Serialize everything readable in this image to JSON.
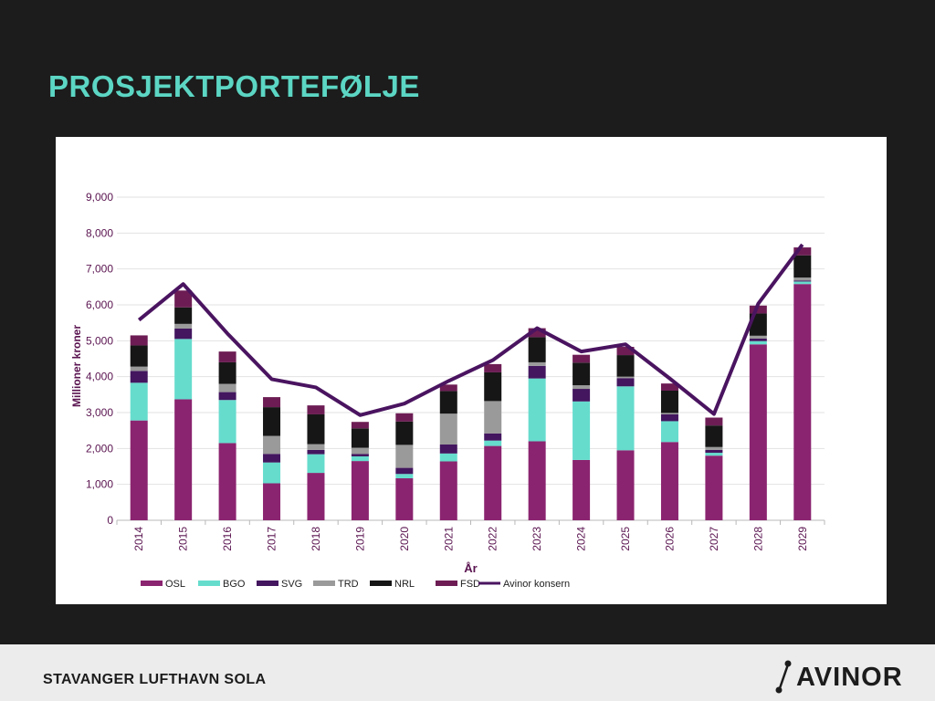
{
  "slide": {
    "title": "PROSJEKTPORTEFØLJE",
    "footer": "STAVANGER LUFTHAVN SOLA",
    "logo_text": "AVINOR"
  },
  "chart_data": {
    "type": "bar",
    "stacked": true,
    "title": "",
    "xlabel": "År",
    "ylabel": "Millioner kroner",
    "ylim": [
      0,
      9000
    ],
    "yticks": [
      0,
      1000,
      2000,
      3000,
      4000,
      5000,
      6000,
      7000,
      8000,
      9000
    ],
    "ytick_labels": [
      "0",
      "1,000",
      "2,000",
      "3,000",
      "4,000",
      "5,000",
      "6,000",
      "7,000",
      "8,000",
      "9,000"
    ],
    "grid": true,
    "legend_position": "bottom",
    "categories": [
      "2014",
      "2015",
      "2016",
      "2017",
      "2018",
      "2019",
      "2020",
      "2021",
      "2022",
      "2023",
      "2024",
      "2025",
      "2026",
      "2027",
      "2028",
      "2029"
    ],
    "series": [
      {
        "name": "OSL",
        "color": "#8b2470",
        "values": [
          2780,
          3370,
          2150,
          1030,
          1320,
          1650,
          1170,
          1640,
          2070,
          2200,
          1680,
          1950,
          2180,
          1800,
          4900,
          6580
        ]
      },
      {
        "name": "BGO",
        "color": "#66dccd",
        "values": [
          1050,
          1680,
          1200,
          580,
          520,
          130,
          120,
          220,
          150,
          1750,
          1630,
          1780,
          580,
          80,
          90,
          70
        ]
      },
      {
        "name": "SVG",
        "color": "#43165f",
        "values": [
          330,
          290,
          220,
          240,
          120,
          70,
          170,
          250,
          200,
          350,
          350,
          230,
          190,
          80,
          70,
          30
        ]
      },
      {
        "name": "TRD",
        "color": "#9a9a9a",
        "values": [
          120,
          130,
          230,
          500,
          160,
          170,
          640,
          860,
          900,
          100,
          100,
          40,
          40,
          80,
          80,
          80
        ]
      },
      {
        "name": "NRL",
        "color": "#161616",
        "values": [
          590,
          460,
          600,
          800,
          830,
          540,
          650,
          630,
          800,
          700,
          630,
          600,
          620,
          600,
          620,
          620
        ]
      },
      {
        "name": "FSD",
        "color": "#6d1d54",
        "values": [
          280,
          470,
          300,
          280,
          250,
          180,
          230,
          180,
          230,
          250,
          220,
          230,
          200,
          220,
          220,
          220
        ]
      },
      {
        "name": "Avinor konsern",
        "type": "line",
        "color": "#4a1460",
        "values": [
          5580,
          6580,
          5200,
          3930,
          3700,
          2930,
          3250,
          3880,
          4460,
          5350,
          4700,
          4900,
          3950,
          2960,
          6030,
          7680
        ]
      }
    ]
  }
}
